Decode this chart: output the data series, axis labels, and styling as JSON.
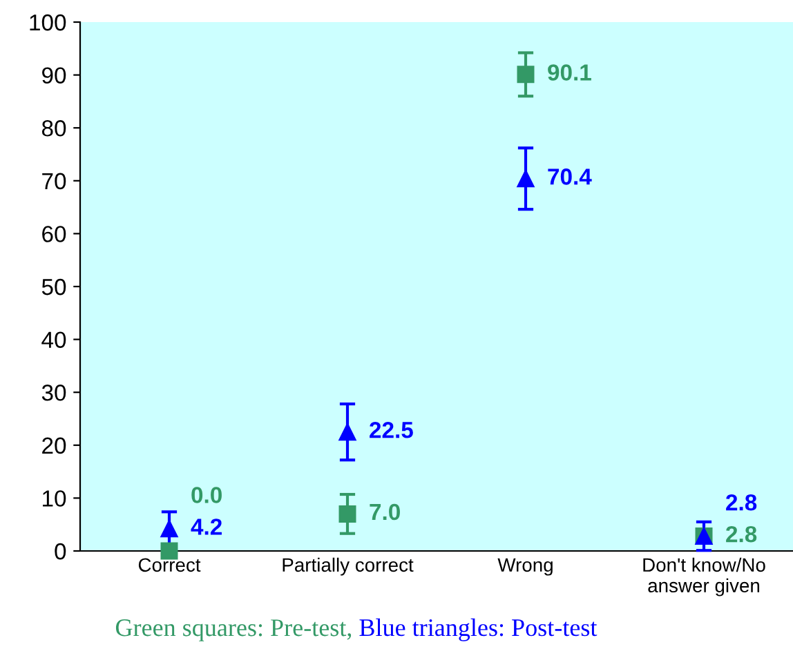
{
  "chart_data": {
    "type": "scatter",
    "categories": [
      "Correct",
      "Partially correct",
      "Wrong",
      "Don't know/No\nanswer given"
    ],
    "series": [
      {
        "color": "#339966",
        "marker": "square",
        "values": [
          0.0,
          7.0,
          90.1,
          2.8
        ],
        "errors": [
          null,
          3.7,
          4.1,
          null
        ],
        "value_labels": [
          "0.0",
          "7.0",
          "90.1",
          "2.8"
        ]
      },
      {
        "color": "#0000ff",
        "marker": "triangle",
        "values": [
          4.2,
          22.5,
          70.4,
          2.8
        ],
        "errors": [
          3.2,
          5.3,
          5.8,
          2.7
        ],
        "value_labels": [
          "4.2",
          "22.5",
          "70.4",
          "2.8"
        ]
      }
    ],
    "ylim": [
      0,
      100
    ],
    "yticks": [
      0,
      10,
      20,
      30,
      40,
      50,
      60,
      70,
      80,
      90,
      100
    ],
    "grid": false,
    "legend": false,
    "annotations": [
      "Green squares: Pre-test,",
      "Blue triangles: Post-test"
    ]
  }
}
